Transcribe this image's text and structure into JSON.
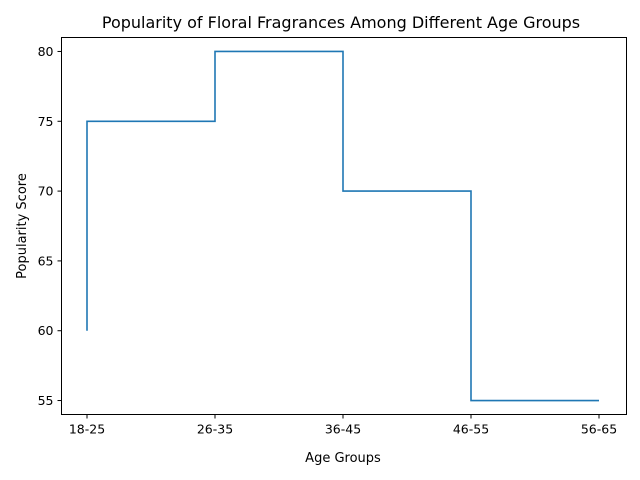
{
  "chart_data": {
    "type": "line",
    "subtype": "step-pre",
    "title": "Popularity of Floral Fragrances Among Different Age Groups",
    "xlabel": "Age Groups",
    "ylabel": "Popularity Score",
    "categories": [
      "18-25",
      "26-35",
      "36-45",
      "46-55",
      "56-65"
    ],
    "values": [
      60,
      75,
      80,
      70,
      55
    ],
    "ylim": [
      54,
      81
    ],
    "yticks": [
      55,
      60,
      65,
      70,
      75,
      80
    ],
    "grid": false,
    "line_color": "#1f77b4"
  }
}
